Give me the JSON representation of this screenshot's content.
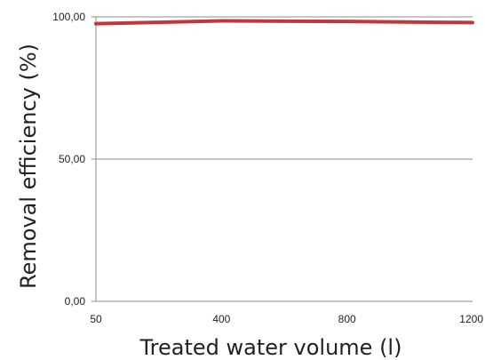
{
  "chart_data": {
    "type": "line",
    "title": "",
    "xlabel": "Treated water volume (l)",
    "ylabel": "Removal efficiency (%)",
    "x": [
      "50",
      "400",
      "800",
      "1200"
    ],
    "series": [
      {
        "values": [
          97.6,
          98.6,
          98.4,
          98.0
        ],
        "color": "#c0383a"
      }
    ],
    "ylim": [
      0,
      100
    ],
    "yticks": [
      "0,00",
      "50,00",
      "100,00"
    ],
    "xticks": [
      "50",
      "400",
      "800",
      "1200"
    ],
    "grid": "horizontal",
    "gridColor": "#8c8c8c",
    "axisColor": "#8c8c8c"
  }
}
